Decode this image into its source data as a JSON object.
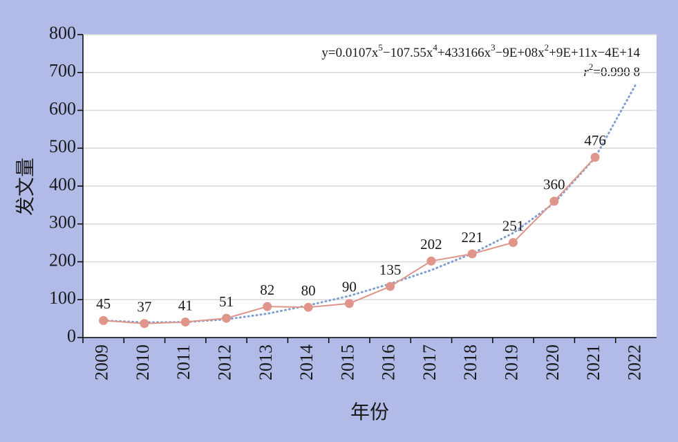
{
  "chart_data": {
    "type": "line",
    "x_label": "年份",
    "y_label": "发文量",
    "categories": [
      "2009",
      "2010",
      "2011",
      "2012",
      "2013",
      "2014",
      "2015",
      "2016",
      "2017",
      "2018",
      "2019",
      "2020",
      "2021",
      "2022"
    ],
    "series": [
      {
        "color": "#e0958a",
        "style": "solid",
        "values": [
          45,
          37,
          41,
          51,
          82,
          80,
          90,
          135,
          202,
          221,
          251,
          360,
          476,
          null
        ]
      },
      {
        "color": "#7f9fd0",
        "style": "dotted",
        "values": [
          45,
          40,
          41,
          48,
          63,
          85,
          110,
          142,
          178,
          222,
          276,
          355,
          475,
          670
        ]
      }
    ],
    "equation": [
      "y=0.0107x",
      "5",
      "−107.55x",
      "4",
      "+433166x",
      "3",
      "−9E+08x",
      "2",
      "+9E+11x−4E+14"
    ],
    "r_squared": [
      "r",
      "2",
      "=0.990 8"
    ],
    "ylim": [
      0,
      800
    ],
    "yticks": [
      0,
      100,
      200,
      300,
      400,
      500,
      600,
      700,
      800
    ],
    "grid": true
  }
}
